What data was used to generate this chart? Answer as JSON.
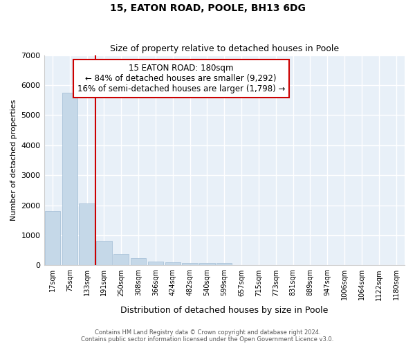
{
  "title1": "15, EATON ROAD, POOLE, BH13 6DG",
  "title2": "Size of property relative to detached houses in Poole",
  "xlabel": "Distribution of detached houses by size in Poole",
  "ylabel": "Number of detached properties",
  "bar_color": "#c5d8e8",
  "bar_edgecolor": "#a0bcd4",
  "background_color": "#e8f0f8",
  "grid_color": "#ffffff",
  "categories": [
    "17sqm",
    "75sqm",
    "133sqm",
    "191sqm",
    "250sqm",
    "308sqm",
    "366sqm",
    "424sqm",
    "482sqm",
    "540sqm",
    "599sqm",
    "657sqm",
    "715sqm",
    "773sqm",
    "831sqm",
    "889sqm",
    "947sqm",
    "1006sqm",
    "1064sqm",
    "1122sqm",
    "1180sqm"
  ],
  "values": [
    1800,
    5750,
    2060,
    820,
    365,
    235,
    120,
    90,
    80,
    70,
    65,
    0,
    0,
    0,
    0,
    0,
    0,
    0,
    0,
    0,
    0
  ],
  "ylim": [
    0,
    7000
  ],
  "yticks": [
    0,
    1000,
    2000,
    3000,
    4000,
    5000,
    6000,
    7000
  ],
  "vline_x": 2.5,
  "vline_color": "#cc0000",
  "annotation_text": "15 EATON ROAD: 180sqm\n← 84% of detached houses are smaller (9,292)\n16% of semi-detached houses are larger (1,798) →",
  "annotation_box_color": "#ffffff",
  "annotation_box_edgecolor": "#cc0000",
  "footer1": "Contains HM Land Registry data © Crown copyright and database right 2024.",
  "footer2": "Contains public sector information licensed under the Open Government Licence v3.0.",
  "fig_width": 6.0,
  "fig_height": 5.0,
  "fig_dpi": 100
}
